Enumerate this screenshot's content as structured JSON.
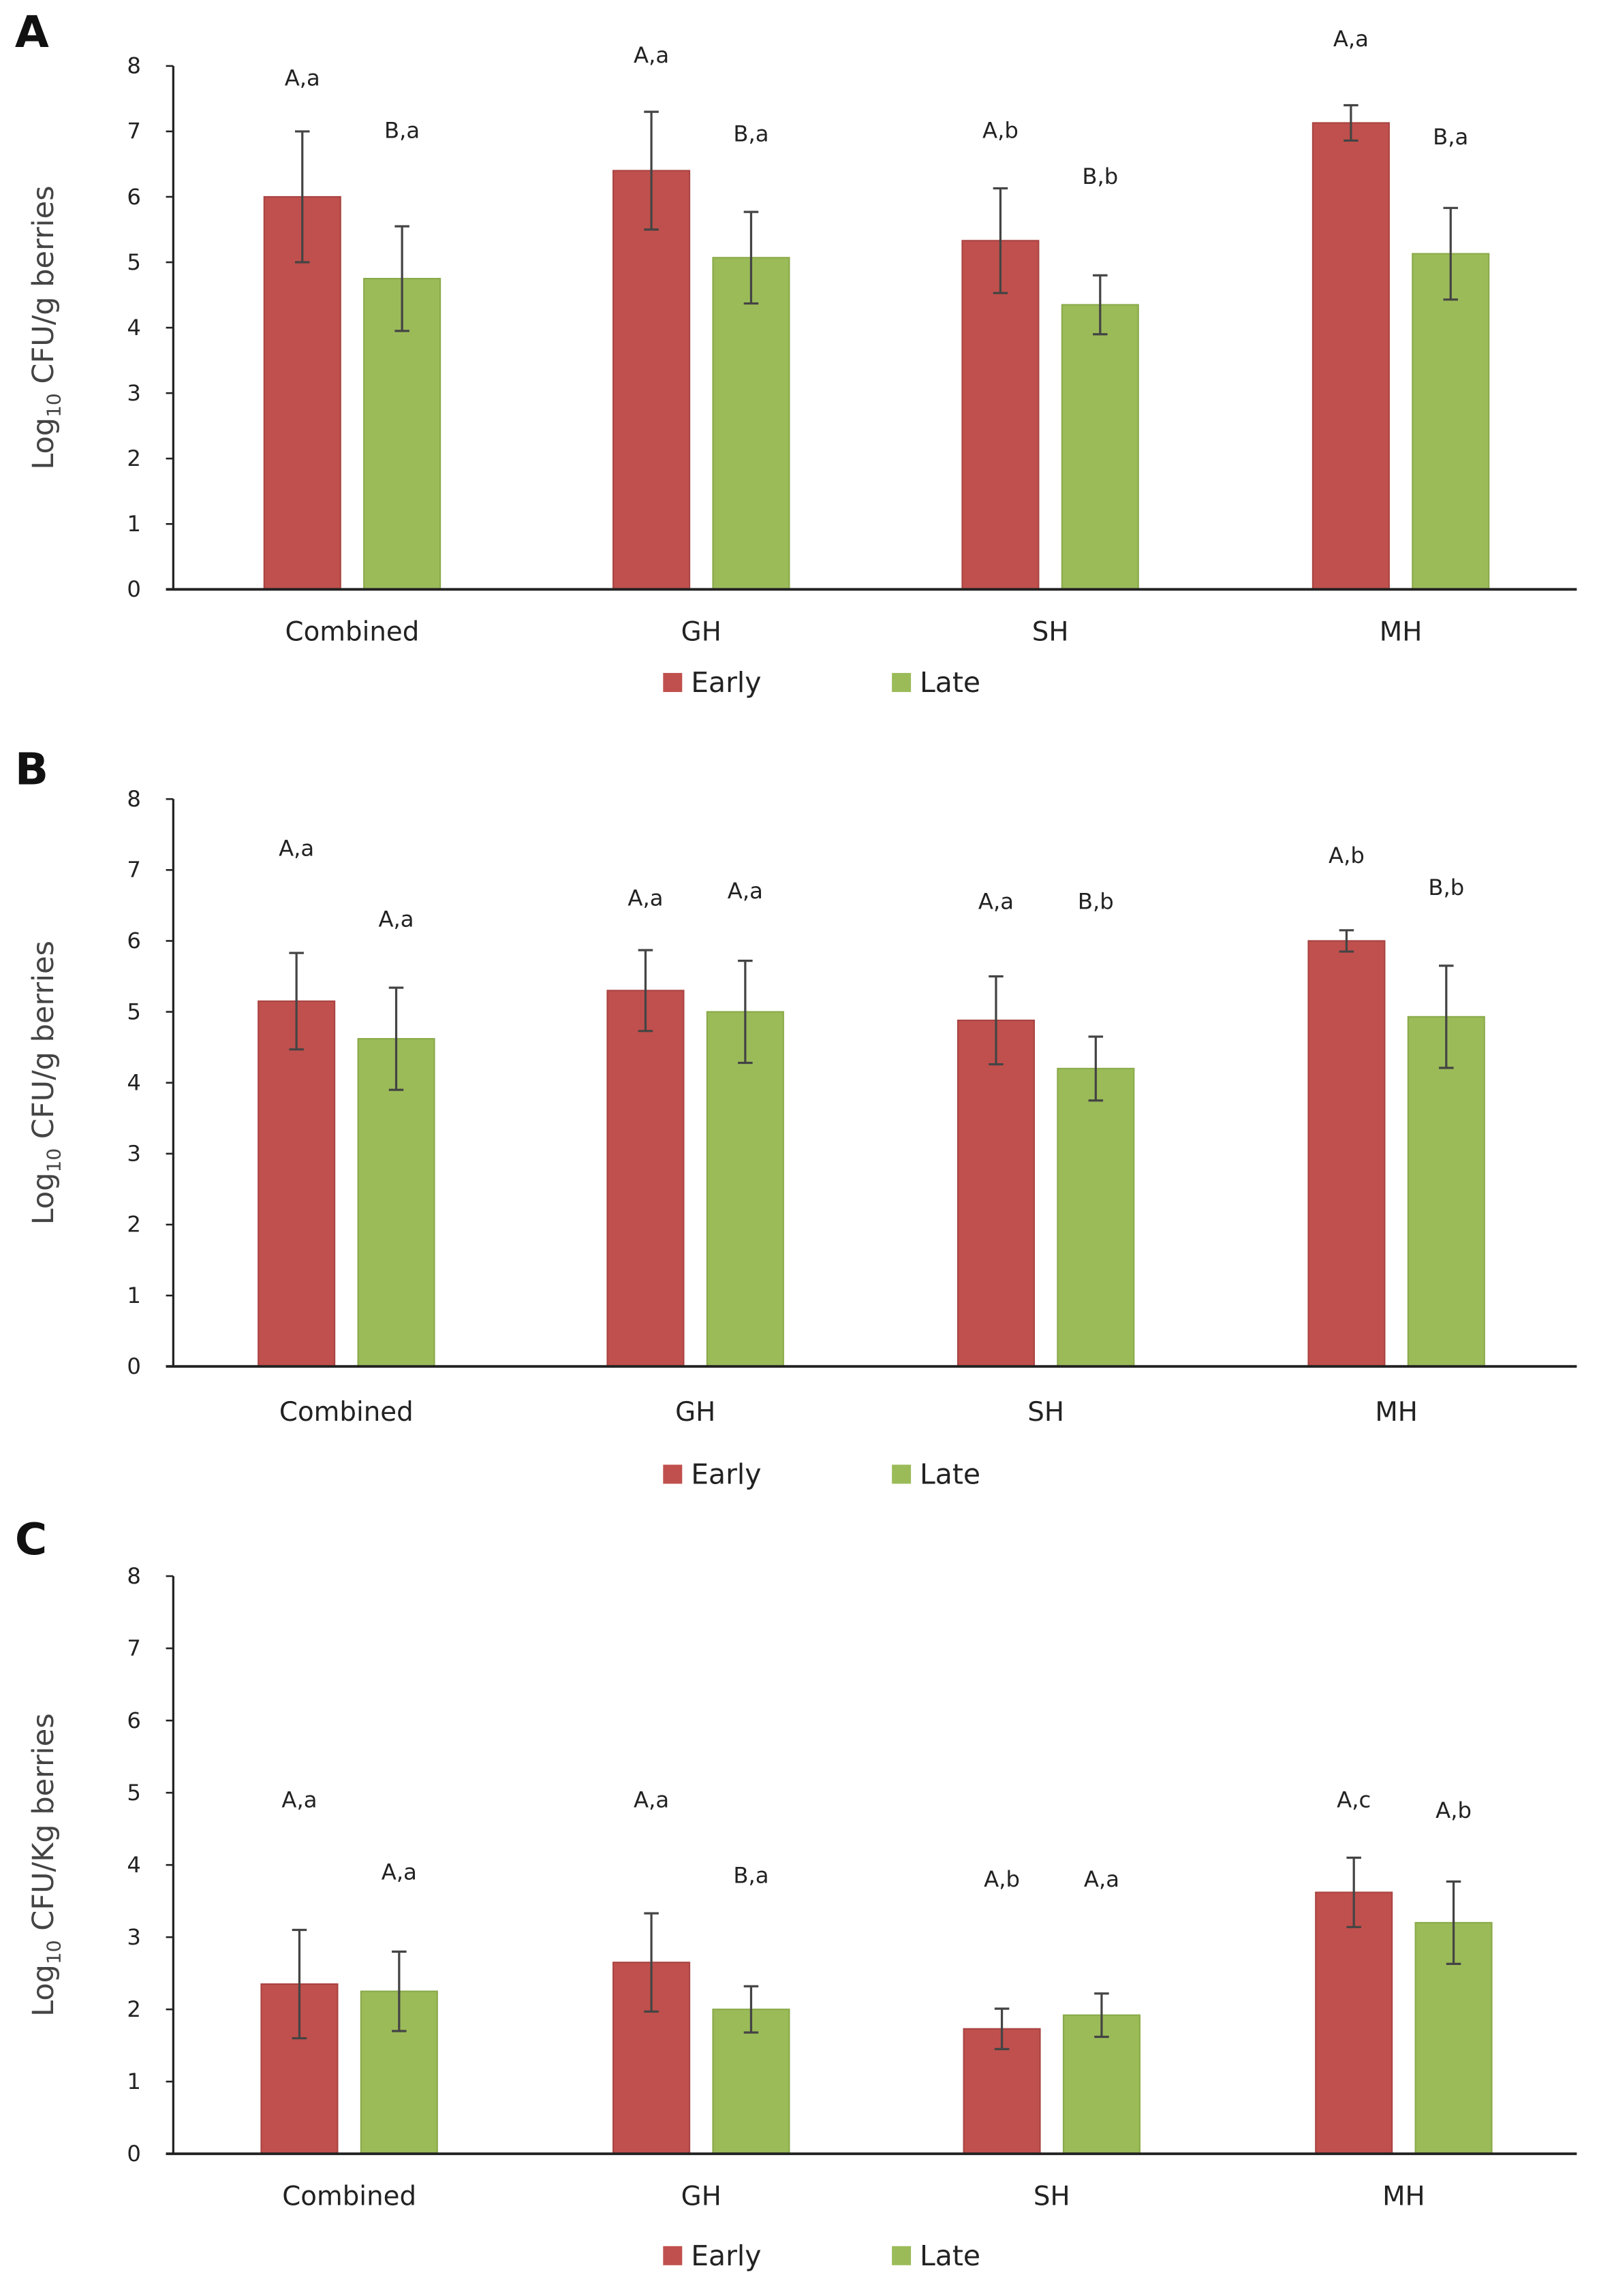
{
  "colors": {
    "early": "#c0504d",
    "late": "#9bbb59",
    "axis": "#222222",
    "error": "#444444"
  },
  "chart_data": [
    {
      "type": "bar",
      "panel": "A",
      "ylabel": "Log10 CFU/g berries",
      "ylabel_main": "Log",
      "ylabel_sub": "10",
      "ylabel_rest": " CFU/g berries",
      "ylim": [
        0,
        8
      ],
      "yticks": [
        "0",
        "1",
        "2",
        "3",
        "4",
        "5",
        "6",
        "7",
        "8"
      ],
      "categories": [
        "Combined",
        "GH",
        "SH",
        "MH"
      ],
      "legend": [
        "Early",
        "Late"
      ],
      "legend_position": "bottom-center",
      "series": [
        {
          "name": "Early",
          "values": [
            6.0,
            6.4,
            5.33,
            7.13
          ],
          "errors": [
            1.0,
            0.9,
            0.8,
            0.27
          ],
          "annotations": [
            "A,a",
            "A,a",
            "A,b",
            "A,a"
          ],
          "annotation_y": [
            7.7,
            8.05,
            6.9,
            8.3
          ]
        },
        {
          "name": "Late",
          "values": [
            4.75,
            5.07,
            4.35,
            5.13
          ],
          "errors": [
            0.8,
            0.7,
            0.45,
            0.7
          ],
          "annotations": [
            "B,a",
            "B,a",
            "B,b",
            "B,a"
          ],
          "annotation_y": [
            6.9,
            6.85,
            6.2,
            6.8
          ]
        }
      ]
    },
    {
      "type": "bar",
      "panel": "B",
      "ylabel": "Log10 CFU/g berries",
      "ylabel_main": "Log",
      "ylabel_sub": "10",
      "ylabel_rest": " CFU/g berries",
      "ylim": [
        0,
        8
      ],
      "yticks": [
        "0",
        "1",
        "2",
        "3",
        "4",
        "5",
        "6",
        "7",
        "8"
      ],
      "categories": [
        "Combined",
        "GH",
        "SH",
        "MH"
      ],
      "legend": [
        "Early",
        "Late"
      ],
      "legend_position": "bottom-center",
      "series": [
        {
          "name": "Early",
          "values": [
            5.15,
            5.3,
            4.88,
            6.0
          ],
          "errors": [
            0.68,
            0.57,
            0.62,
            0.15
          ],
          "annotations": [
            "A,a",
            "A,a",
            "A,a",
            "A,b"
          ],
          "annotation_y": [
            7.2,
            6.5,
            6.45,
            7.1
          ]
        },
        {
          "name": "Late",
          "values": [
            4.62,
            5.0,
            4.2,
            4.93
          ],
          "errors": [
            0.72,
            0.72,
            0.45,
            0.72
          ],
          "annotations": [
            "A,a",
            "A,a",
            "B,b",
            "B,b"
          ],
          "annotation_y": [
            6.2,
            6.6,
            6.45,
            6.65
          ]
        }
      ]
    },
    {
      "type": "bar",
      "panel": "C",
      "ylabel": "Log10 CFU/Kg berries",
      "ylabel_main": "Log",
      "ylabel_sub": "10",
      "ylabel_rest": " CFU/Kg berries",
      "ylim": [
        0,
        8
      ],
      "yticks": [
        "0",
        "1",
        "2",
        "3",
        "4",
        "5",
        "6",
        "7",
        "8"
      ],
      "categories": [
        "Combined",
        "GH",
        "SH",
        "MH"
      ],
      "legend": [
        "Early",
        "Late"
      ],
      "legend_position": "bottom-center",
      "series": [
        {
          "name": "Early",
          "values": [
            2.35,
            2.65,
            1.73,
            3.62
          ],
          "errors": [
            0.75,
            0.68,
            0.28,
            0.48
          ],
          "annotations": [
            "A,a",
            "A,a",
            "A,b",
            "A,c"
          ],
          "annotation_y": [
            4.8,
            4.8,
            3.7,
            4.8
          ]
        },
        {
          "name": "Late",
          "values": [
            2.25,
            2.0,
            1.92,
            3.2
          ],
          "errors": [
            0.55,
            0.32,
            0.3,
            0.57
          ],
          "annotations": [
            "A,a",
            "B,a",
            "A,a",
            "A,b"
          ],
          "annotation_y": [
            3.8,
            3.75,
            3.7,
            4.65
          ]
        }
      ]
    }
  ]
}
